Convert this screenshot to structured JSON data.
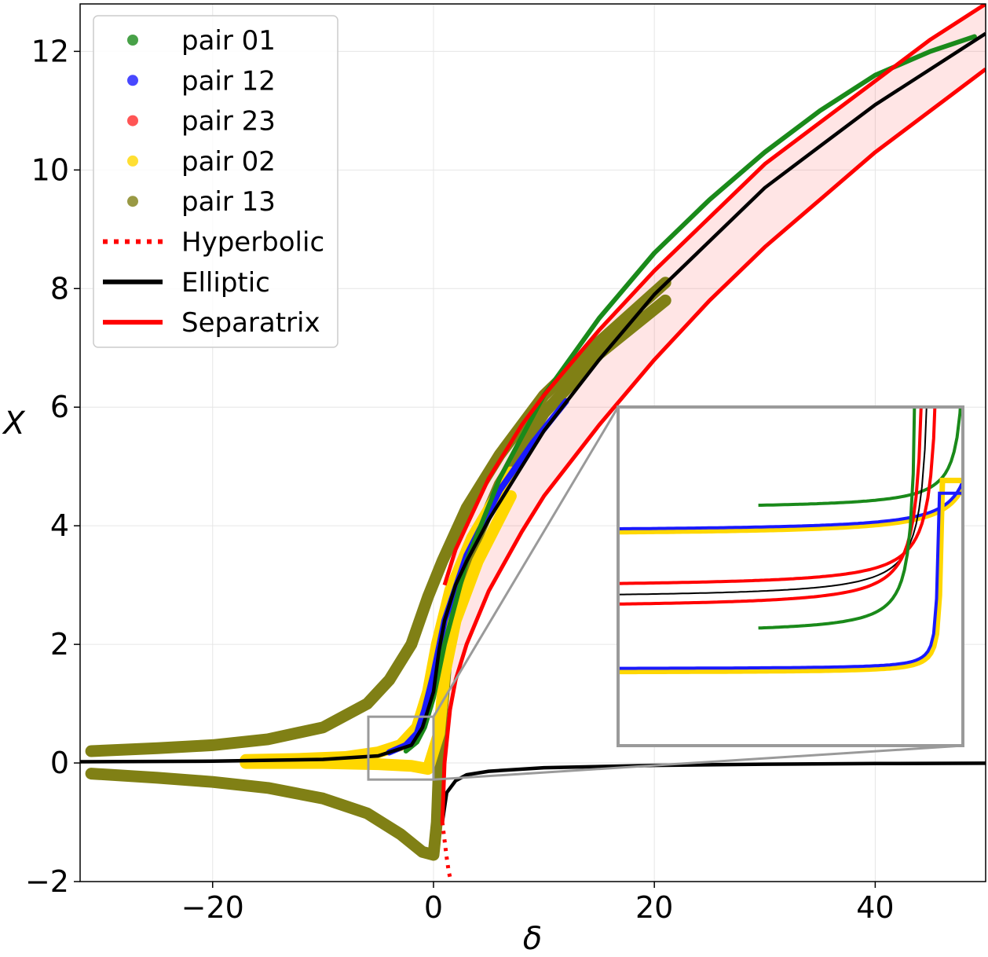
{
  "chart_data": {
    "type": "scatter",
    "xlabel": "δ",
    "ylabel": "X",
    "xlim": [
      -32,
      50
    ],
    "ylim": [
      -2,
      12.8
    ],
    "xticks": [
      -20,
      0,
      20,
      40
    ],
    "xtick_labels": [
      "−20",
      "0",
      "20",
      "40"
    ],
    "yticks": [
      -2,
      0,
      2,
      4,
      6,
      8,
      10,
      12
    ],
    "ytick_labels": [
      "−2",
      "0",
      "2",
      "4",
      "6",
      "8",
      "10",
      "12"
    ],
    "grid": true,
    "legend_position": "top-left",
    "legend": [
      {
        "label": "pair 01",
        "kind": "marker",
        "color": "#1a8a1a"
      },
      {
        "label": "pair 12",
        "kind": "marker",
        "color": "#1a1aff"
      },
      {
        "label": "pair 23",
        "kind": "marker",
        "color": "#ff2a2a"
      },
      {
        "label": "pair 02",
        "kind": "marker",
        "color": "#ffd700"
      },
      {
        "label": "pair 13",
        "kind": "marker",
        "color": "#808015"
      },
      {
        "label": "Hyperbolic",
        "kind": "dotted",
        "color": "#ff0000"
      },
      {
        "label": "Elliptic",
        "kind": "line",
        "color": "#000000"
      },
      {
        "label": "Separatrix",
        "kind": "line",
        "color": "#ff0000"
      }
    ],
    "series": [
      {
        "name": "pair 13",
        "color": "#808015",
        "points": [
          [
            -31,
            0.2
          ],
          [
            -25,
            0.25
          ],
          [
            -20,
            0.3
          ],
          [
            -15,
            0.4
          ],
          [
            -10,
            0.6
          ],
          [
            -6,
            1.0
          ],
          [
            -4,
            1.4
          ],
          [
            -2,
            2.0
          ],
          [
            -0.5,
            2.8
          ],
          [
            0.8,
            3.4
          ],
          [
            3,
            4.3
          ],
          [
            6,
            5.2
          ],
          [
            10,
            6.2
          ],
          [
            15,
            7.1
          ],
          [
            21,
            8.1
          ]
        ]
      },
      {
        "name": "pair 13",
        "color": "#808015",
        "points": [
          [
            -31,
            -0.18
          ],
          [
            -25,
            -0.25
          ],
          [
            -20,
            -0.32
          ],
          [
            -15,
            -0.42
          ],
          [
            -10,
            -0.6
          ],
          [
            -6,
            -0.85
          ],
          [
            -3,
            -1.2
          ],
          [
            -1,
            -1.5
          ],
          [
            0,
            -1.55
          ],
          [
            0.3,
            -1.0
          ],
          [
            0.6,
            0.5
          ],
          [
            1.2,
            1.8
          ],
          [
            3,
            3.4
          ],
          [
            6,
            4.7
          ],
          [
            10,
            5.9
          ],
          [
            15,
            6.9
          ],
          [
            21,
            7.8
          ]
        ]
      },
      {
        "name": "pair 02",
        "color": "#ffd700",
        "points": [
          [
            -17,
            0.05
          ],
          [
            -12,
            0.07
          ],
          [
            -8,
            0.1
          ],
          [
            -5,
            0.18
          ],
          [
            -3,
            0.3
          ],
          [
            -1.5,
            0.6
          ],
          [
            -0.5,
            1.2
          ],
          [
            0.3,
            2.0
          ],
          [
            1.5,
            2.9
          ],
          [
            3.5,
            3.8
          ],
          [
            7,
            4.9
          ]
        ]
      },
      {
        "name": "pair 02",
        "color": "#ffd700",
        "points": [
          [
            -17,
            0.0
          ],
          [
            -10,
            0.0
          ],
          [
            -5,
            -0.02
          ],
          [
            -2,
            -0.05
          ],
          [
            -0.5,
            -0.1
          ],
          [
            0.5,
            0.5
          ],
          [
            1,
            1.5
          ],
          [
            2,
            2.4
          ],
          [
            4,
            3.4
          ],
          [
            7,
            4.5
          ]
        ]
      },
      {
        "name": "pair 12",
        "color": "#1a1aff",
        "points": [
          [
            -4,
            0.18
          ],
          [
            -2.5,
            0.3
          ],
          [
            -1.5,
            0.5
          ],
          [
            -0.8,
            0.9
          ],
          [
            0,
            1.5
          ],
          [
            1,
            2.4
          ],
          [
            3,
            3.5
          ],
          [
            6,
            4.6
          ],
          [
            9,
            5.4
          ],
          [
            12,
            6.1
          ]
        ]
      },
      {
        "name": "pair 01",
        "color": "#1a8a1a",
        "points": [
          [
            -2.5,
            0.2
          ],
          [
            -1.5,
            0.35
          ],
          [
            -0.8,
            0.6
          ],
          [
            0,
            1.1
          ],
          [
            1,
            2.0
          ],
          [
            3,
            3.4
          ],
          [
            6,
            4.8
          ],
          [
            10,
            6.2
          ],
          [
            15,
            7.5
          ],
          [
            20,
            8.6
          ],
          [
            25,
            9.5
          ],
          [
            30,
            10.3
          ],
          [
            35,
            11.0
          ],
          [
            40,
            11.6
          ],
          [
            45,
            12.0
          ],
          [
            49,
            12.25
          ]
        ]
      }
    ],
    "lines": [
      {
        "name": "Elliptic",
        "color": "#000000",
        "points": [
          [
            -32,
            0.02
          ],
          [
            -20,
            0.03
          ],
          [
            -10,
            0.06
          ],
          [
            -5,
            0.12
          ],
          [
            -2,
            0.3
          ],
          [
            -1,
            0.6
          ],
          [
            0,
            1.2
          ],
          [
            0.5,
            1.9
          ],
          [
            1,
            2.4
          ],
          [
            2,
            3.0
          ],
          [
            3,
            3.4
          ],
          [
            5,
            4.1
          ],
          [
            8,
            5.0
          ],
          [
            10,
            5.6
          ],
          [
            15,
            6.8
          ],
          [
            20,
            7.9
          ],
          [
            25,
            8.8
          ],
          [
            30,
            9.7
          ],
          [
            35,
            10.4
          ],
          [
            40,
            11.1
          ],
          [
            45,
            11.7
          ],
          [
            50,
            12.3
          ]
        ]
      },
      {
        "name": "Elliptic",
        "color": "#000000",
        "points": [
          [
            0.8,
            -1.0
          ],
          [
            1.2,
            -0.5
          ],
          [
            2,
            -0.3
          ],
          [
            3,
            -0.2
          ],
          [
            5,
            -0.14
          ],
          [
            10,
            -0.08
          ],
          [
            20,
            -0.04
          ],
          [
            30,
            -0.02
          ],
          [
            40,
            -0.01
          ],
          [
            50,
            -0.005
          ]
        ]
      },
      {
        "name": "Separatrix",
        "color": "#ff0000",
        "points": [
          [
            1,
            3.0
          ],
          [
            2,
            3.6
          ],
          [
            3,
            4.0
          ],
          [
            5,
            4.8
          ],
          [
            8,
            5.7
          ],
          [
            10,
            6.2
          ],
          [
            15,
            7.3
          ],
          [
            20,
            8.3
          ],
          [
            25,
            9.2
          ],
          [
            30,
            10.1
          ],
          [
            35,
            10.8
          ],
          [
            40,
            11.5
          ],
          [
            45,
            12.2
          ],
          [
            50,
            12.8
          ]
        ]
      },
      {
        "name": "Separatrix",
        "color": "#ff0000",
        "points": [
          [
            0.8,
            -1.0
          ],
          [
            1,
            0.0
          ],
          [
            1.5,
            0.9
          ],
          [
            2,
            1.4
          ],
          [
            3,
            2.0
          ],
          [
            5,
            2.9
          ],
          [
            8,
            3.9
          ],
          [
            10,
            4.5
          ],
          [
            15,
            5.7
          ],
          [
            20,
            6.8
          ],
          [
            25,
            7.8
          ],
          [
            30,
            8.7
          ],
          [
            35,
            9.5
          ],
          [
            40,
            10.3
          ],
          [
            45,
            11.0
          ],
          [
            50,
            11.7
          ]
        ]
      },
      {
        "name": "Hyperbolic",
        "color": "#ff0000",
        "dotted": true,
        "points": [
          [
            0.8,
            -1.0
          ],
          [
            1.0,
            -1.3
          ],
          [
            1.2,
            -1.6
          ],
          [
            1.4,
            -1.85
          ],
          [
            1.6,
            -2.0
          ]
        ]
      }
    ],
    "inset": {
      "zoom_box": {
        "xlim": [
          -5.9,
          0
        ],
        "ylim": [
          -0.28,
          0.78
        ]
      }
    }
  }
}
